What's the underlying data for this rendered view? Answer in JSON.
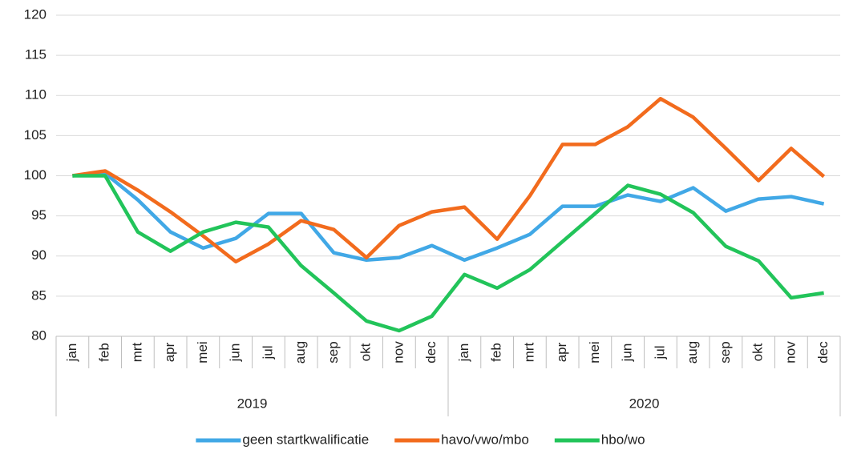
{
  "chart_data": {
    "type": "line",
    "category_groups": [
      {
        "label": "2019",
        "categories": [
          "jan",
          "feb",
          "mrt",
          "apr",
          "mei",
          "jun",
          "jul",
          "aug",
          "sep",
          "okt",
          "nov",
          "dec"
        ]
      },
      {
        "label": "2020",
        "categories": [
          "jan",
          "feb",
          "mrt",
          "apr",
          "mei",
          "jun",
          "jul",
          "aug",
          "sep",
          "okt",
          "nov",
          "dec"
        ]
      }
    ],
    "series": [
      {
        "name": "geen startkwalificatie",
        "color": "#41a8e6",
        "values": [
          100,
          100.3,
          97,
          93,
          91,
          92.2,
          95.3,
          95.3,
          90.4,
          89.5,
          89.8,
          91.3,
          89.5,
          91,
          92.7,
          96.2,
          96.2,
          97.6,
          96.8,
          98.5,
          95.6,
          97.1,
          97.4,
          96.5
        ]
      },
      {
        "name": "havo/vwo/mbo",
        "color": "#f26b1d",
        "values": [
          100,
          100.6,
          98.2,
          95.5,
          92.5,
          89.3,
          91.5,
          94.4,
          93.3,
          89.8,
          93.8,
          95.5,
          96.1,
          92.1,
          97.5,
          103.9,
          103.9,
          106.1,
          109.6,
          107.3,
          103.4,
          99.4,
          103.4,
          99.9
        ]
      },
      {
        "name": "hbo/wo",
        "color": "#22c45a",
        "values": [
          100,
          100,
          93,
          90.6,
          93,
          94.2,
          93.6,
          88.8,
          85.4,
          81.9,
          80.7,
          82.5,
          87.7,
          86,
          88.3,
          91.8,
          95.3,
          98.8,
          97.7,
          95.4,
          91.2,
          89.4,
          84.8,
          85.4
        ]
      }
    ],
    "ylim": [
      80,
      120
    ],
    "yticks": [
      80,
      85,
      90,
      95,
      100,
      105,
      110,
      115,
      120
    ],
    "grid": true,
    "legend": "bottom"
  }
}
